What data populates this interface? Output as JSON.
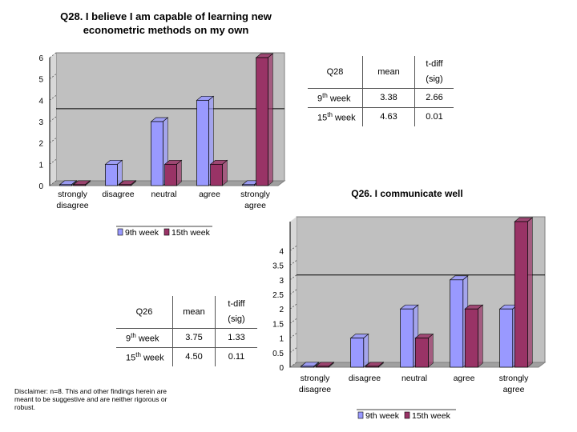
{
  "colors": {
    "week9": "#9999ff",
    "week15": "#993366",
    "plot_bg": "#c0c0c0",
    "bar_edge": "#000000"
  },
  "legend_labels": [
    "9th week",
    "15th week"
  ],
  "chart_data": [
    {
      "type": "bar",
      "title": "Q28. I believe I am capable of learning new econometric methods on my own",
      "title_lines": [
        "Q28. I believe I am capable of learning new",
        "econometric methods on my own"
      ],
      "categories": [
        "strongly disagree",
        "disagree",
        "neutral",
        "agree",
        "strongly agree"
      ],
      "category_lines": [
        [
          "strongly",
          "disagree"
        ],
        [
          "disagree"
        ],
        [
          "neutral"
        ],
        [
          "agree"
        ],
        [
          "strongly",
          "agree"
        ]
      ],
      "series": [
        {
          "name": "9th week",
          "values": [
            0,
            1,
            3,
            4,
            0
          ]
        },
        {
          "name": "15th week",
          "values": [
            0,
            0,
            1,
            1,
            6
          ]
        }
      ],
      "ylim": [
        0,
        6
      ],
      "yticks": [
        0,
        1,
        2,
        3,
        4,
        5,
        6
      ],
      "ytick_labels": [
        "0",
        "1",
        "2",
        "3",
        "4",
        "5",
        "6"
      ],
      "reference_line": 3.38,
      "xlabel": "",
      "ylabel": "",
      "legend": "bottom"
    },
    {
      "type": "bar",
      "title": "Q26. I communicate well",
      "title_lines": [
        "Q26. I communicate well"
      ],
      "categories": [
        "strongly disagree",
        "disagree",
        "neutral",
        "agree",
        "strongly agree"
      ],
      "category_lines": [
        [
          "strongly",
          "disagree"
        ],
        [
          "disagree"
        ],
        [
          "neutral"
        ],
        [
          "agree"
        ],
        [
          "strongly",
          "agree"
        ]
      ],
      "series": [
        {
          "name": "9th week",
          "values": [
            0,
            1,
            2,
            3,
            2
          ]
        },
        {
          "name": "15th week",
          "values": [
            0,
            0,
            1,
            2,
            5
          ]
        }
      ],
      "ylim": [
        0,
        5
      ],
      "yticks": [
        0,
        0.5,
        1,
        1.5,
        2,
        2.5,
        3,
        3.5,
        4
      ],
      "ytick_labels": [
        "0",
        "0.5",
        "1",
        "1.5",
        "2",
        "2.5",
        "3",
        "3.5",
        "4"
      ],
      "reference_line": 3.0,
      "xlabel": "",
      "ylabel": "",
      "legend": "bottom"
    }
  ],
  "table_q28": {
    "headers": [
      "Q28",
      "mean",
      "t-diff",
      "(sig)"
    ],
    "rows": [
      {
        "label": "9",
        "sup": "th",
        "suffix": " week",
        "mean": "3.38",
        "tdiff": "2.66"
      },
      {
        "label": "15",
        "sup": "th",
        "suffix": " week",
        "mean": "4.63",
        "tdiff": "0.01"
      }
    ]
  },
  "table_q26": {
    "headers": [
      "Q26",
      "mean",
      "t-diff",
      "(sig)"
    ],
    "rows": [
      {
        "label": "9",
        "sup": "th",
        "suffix": " week",
        "mean": "3.75",
        "tdiff": "1.33"
      },
      {
        "label": "15",
        "sup": "th",
        "suffix": " week",
        "mean": "4.50",
        "tdiff": "0.11"
      }
    ]
  },
  "disclaimer": "Disclaimer: n=8. This and other findings herein are meant to be suggestive and are neither rigorous or robust."
}
